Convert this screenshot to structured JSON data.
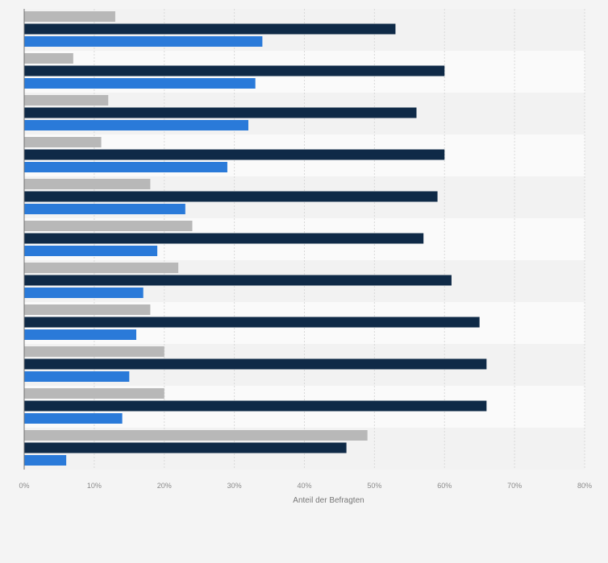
{
  "chart_data": {
    "type": "bar",
    "orientation": "horizontal",
    "title": "",
    "xlabel": "Anteil der Befragten",
    "ylabel": "",
    "xlim": [
      0,
      80
    ],
    "x_ticks": [
      0,
      10,
      20,
      30,
      40,
      50,
      60,
      70,
      80
    ],
    "x_tick_labels": [
      "0%",
      "10%",
      "20%",
      "30%",
      "40%",
      "50%",
      "60%",
      "70%",
      "80%"
    ],
    "grid": true,
    "legend": "none",
    "category_count": 11,
    "series": [
      {
        "name": "series-1",
        "color": "#b8b8b8",
        "values": [
          13,
          7,
          12,
          11,
          18,
          24,
          22,
          18,
          20,
          20,
          49
        ]
      },
      {
        "name": "series-2",
        "color": "#0f2a47",
        "values": [
          53,
          60,
          56,
          60,
          59,
          57,
          61,
          65,
          66,
          66,
          46
        ]
      },
      {
        "name": "series-3",
        "color": "#2a7ad9",
        "values": [
          34,
          33,
          32,
          29,
          23,
          19,
          17,
          16,
          15,
          14,
          6
        ]
      }
    ]
  }
}
